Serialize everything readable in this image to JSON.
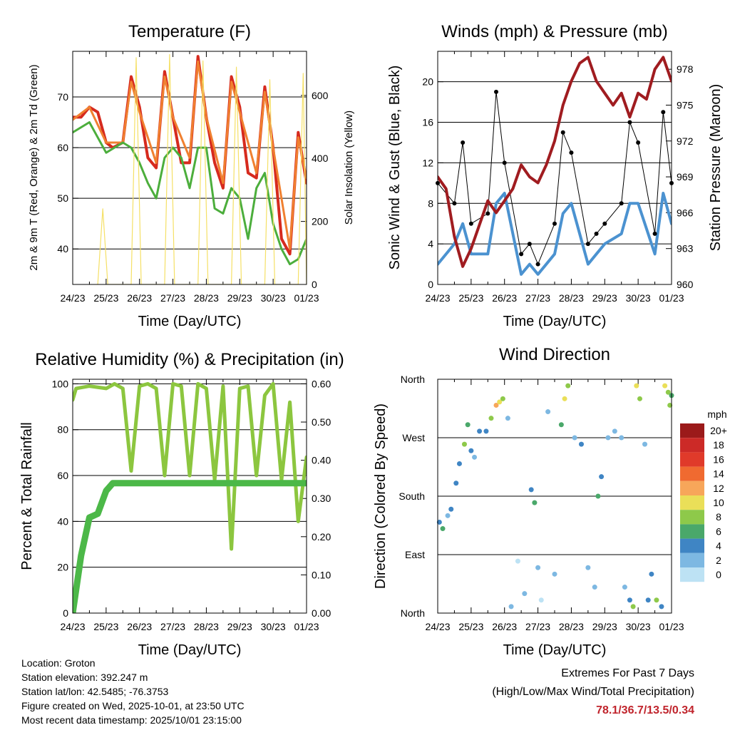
{
  "colors": {
    "red": "#d62a1e",
    "orange": "#f08030",
    "green": "#4cae3c",
    "yellow": "#f5e066",
    "blue": "#4b92d0",
    "black": "#000000",
    "maroon": "#a01c20",
    "rh_green": "#8cc63f",
    "precip_green": "#4cb848",
    "extreme_red": "#c0242c"
  },
  "chart_data": [
    {
      "id": "temperature",
      "type": "line",
      "title": "Temperature (F)",
      "xlabel": "Time (Day/UTC)",
      "ylabel": "2m & 9m T (Red, Orange) & 2m Td (Green)",
      "y2label": "Solar Insolation (Yellow)",
      "x_ticks": [
        "24/23",
        "25/23",
        "26/23",
        "27/23",
        "28/23",
        "29/23",
        "30/23",
        "01/23"
      ],
      "ylim": [
        33,
        79
      ],
      "y_ticks": [
        40,
        50,
        60,
        70
      ],
      "y2lim": [
        0,
        740
      ],
      "y2_ticks": [
        0,
        200,
        400,
        600
      ],
      "grid": true,
      "series": [
        {
          "name": "2m T",
          "color": "red",
          "x": [
            0,
            0.25,
            0.5,
            0.75,
            1,
            1.2,
            1.5,
            1.75,
            2,
            2.25,
            2.5,
            2.75,
            3,
            3.25,
            3.5,
            3.75,
            4,
            4.25,
            4.5,
            4.75,
            5,
            5.25,
            5.5,
            5.75,
            6,
            6.25,
            6.5,
            6.75,
            7
          ],
          "values": [
            66,
            66,
            68,
            67,
            61,
            60,
            61,
            74,
            68,
            58,
            56,
            75,
            66,
            57,
            57,
            78,
            66,
            57,
            52,
            74,
            68,
            55,
            54,
            72,
            60,
            42,
            39,
            63,
            53
          ]
        },
        {
          "name": "9m T",
          "color": "orange",
          "x": [
            0,
            0.5,
            1,
            1.5,
            1.75,
            2,
            2.5,
            2.75,
            3,
            3.5,
            3.75,
            4,
            4.5,
            4.75,
            5,
            5.5,
            5.75,
            6,
            6.5,
            6.75,
            7
          ],
          "values": [
            65.5,
            68,
            61,
            61,
            73,
            67,
            57,
            74,
            66,
            58,
            77,
            66,
            53,
            73,
            67,
            55,
            71,
            60,
            40,
            62,
            54
          ]
        },
        {
          "name": "2m Td",
          "color": "green",
          "x": [
            0,
            0.5,
            1,
            1.5,
            1.75,
            2,
            2.25,
            2.5,
            2.75,
            3,
            3.25,
            3.5,
            3.75,
            4,
            4.25,
            4.5,
            4.75,
            5,
            5.25,
            5.5,
            5.75,
            6,
            6.25,
            6.5,
            6.75,
            7
          ],
          "values": [
            63,
            65,
            59,
            61,
            60,
            57,
            53,
            50,
            58,
            60,
            58,
            52,
            60,
            60,
            48,
            47,
            52,
            50,
            42,
            52,
            55,
            45,
            40,
            37,
            38,
            42
          ]
        },
        {
          "name": "Solar Insolation",
          "color": "yellow",
          "axis": "y2",
          "x": [
            0.75,
            0.9,
            1.05,
            1.75,
            1.9,
            2.05,
            2.75,
            2.9,
            3.05,
            3.75,
            3.9,
            4.05,
            4.75,
            4.9,
            5.05,
            5.75,
            5.9,
            6.05,
            6.75,
            6.9,
            7.0
          ],
          "values": [
            0,
            240,
            0,
            0,
            720,
            0,
            0,
            730,
            0,
            0,
            710,
            0,
            0,
            690,
            0,
            0,
            650,
            0,
            0,
            670,
            0
          ]
        }
      ]
    },
    {
      "id": "winds",
      "type": "line",
      "title": "Winds (mph) & Pressure (mb)",
      "xlabel": "Time (Day/UTC)",
      "ylabel": "Sonic Wind & Gust (Blue, Black)",
      "y2label": "Station Pressure (Maroon)",
      "x_ticks": [
        "24/23",
        "25/23",
        "26/23",
        "27/23",
        "28/23",
        "29/23",
        "30/23",
        "01/23"
      ],
      "ylim": [
        0,
        23
      ],
      "y_ticks": [
        0,
        4,
        8,
        12,
        16,
        20
      ],
      "y2lim": [
        960,
        979.5
      ],
      "y2_ticks": [
        960,
        963,
        966,
        969,
        972,
        975,
        978
      ],
      "grid": true,
      "series": [
        {
          "name": "Sonic Wind",
          "color": "blue",
          "x": [
            0,
            0.5,
            0.75,
            1,
            1.5,
            1.75,
            2,
            2.5,
            2.75,
            3,
            3.5,
            3.75,
            4,
            4.5,
            4.75,
            5,
            5.5,
            5.75,
            6,
            6.5,
            6.75,
            7
          ],
          "values": [
            2,
            4,
            6,
            3,
            3,
            8,
            9,
            1,
            2,
            1,
            3,
            7,
            8,
            2,
            3,
            4,
            5,
            8,
            8,
            3,
            9,
            6
          ]
        },
        {
          "name": "Gust",
          "color": "black",
          "x": [
            0,
            0.5,
            0.75,
            1,
            1.5,
            1.75,
            2,
            2.5,
            2.75,
            3,
            3.5,
            3.75,
            4,
            4.5,
            4.75,
            5,
            5.5,
            5.75,
            6,
            6.5,
            6.75,
            7
          ],
          "values": [
            10,
            8,
            14,
            6,
            7,
            19,
            12,
            3,
            4,
            2,
            6,
            15,
            13,
            4,
            5,
            6,
            8,
            16,
            14,
            5,
            17,
            10
          ]
        },
        {
          "name": "Station Pressure",
          "color": "maroon",
          "axis": "y2",
          "x": [
            0,
            0.25,
            0.5,
            0.75,
            1,
            1.25,
            1.5,
            1.75,
            2,
            2.25,
            2.5,
            2.75,
            3,
            3.25,
            3.5,
            3.75,
            4,
            4.25,
            4.5,
            4.75,
            5,
            5.25,
            5.5,
            5.75,
            6,
            6.25,
            6.5,
            6.75,
            7
          ],
          "values": [
            969,
            968,
            964,
            961.5,
            963,
            965,
            967,
            966,
            967,
            968,
            970,
            969,
            968.5,
            970,
            972,
            975,
            977,
            978.5,
            979,
            977,
            976,
            975,
            976,
            974,
            976,
            975.5,
            978,
            979,
            977
          ]
        }
      ]
    },
    {
      "id": "humidity",
      "type": "line",
      "title": "Relative Humidity (%) & Precipitation (in)",
      "xlabel": "Time (Day/UTC)",
      "ylabel": "Percent & Total Rainfall",
      "x_ticks": [
        "24/23",
        "25/23",
        "26/23",
        "27/23",
        "28/23",
        "29/23",
        "30/23",
        "01/23"
      ],
      "ylim": [
        0,
        102
      ],
      "y_ticks": [
        0,
        20,
        40,
        60,
        80,
        100
      ],
      "y2lim": [
        0,
        0.612
      ],
      "y2_ticks": [
        "0.00",
        "0.10",
        "0.20",
        "0.30",
        "0.40",
        "0.50",
        "0.60"
      ],
      "grid": true,
      "series": [
        {
          "name": "Relative Humidity",
          "color": "rh_green",
          "x": [
            0,
            0.1,
            0.5,
            1,
            1.25,
            1.5,
            1.75,
            2,
            2.25,
            2.5,
            2.75,
            3,
            3.25,
            3.5,
            3.75,
            4,
            4.25,
            4.5,
            4.75,
            5,
            5.25,
            5.5,
            5.75,
            6,
            6.25,
            6.5,
            6.75,
            7
          ],
          "values": [
            93,
            98,
            99,
            98,
            100,
            98,
            62,
            99,
            100,
            98,
            60,
            100,
            99,
            60,
            100,
            98,
            58,
            99,
            28,
            98,
            99,
            60,
            95,
            100,
            58,
            92,
            40,
            68
          ]
        },
        {
          "name": "Total Rainfall",
          "color": "precip_green",
          "axis": "y2",
          "x": [
            0,
            0.25,
            0.5,
            0.75,
            1,
            1.2,
            2,
            3,
            4,
            5,
            6,
            7
          ],
          "values": [
            0,
            0.15,
            0.25,
            0.26,
            0.32,
            0.34,
            0.34,
            0.34,
            0.34,
            0.34,
            0.34,
            0.34
          ]
        }
      ]
    },
    {
      "id": "wind_direction",
      "type": "scatter",
      "title": "Wind Direction",
      "xlabel": "Time (Day/UTC)",
      "ylabel": "Direction (Colored By Speed)",
      "x_ticks": [
        "24/23",
        "25/23",
        "26/23",
        "27/23",
        "28/23",
        "29/23",
        "30/23",
        "01/23"
      ],
      "y_ticks": [
        "North",
        "East",
        "South",
        "West",
        "North"
      ],
      "ylim": [
        0,
        360
      ],
      "legend_title": "mph",
      "legend": [
        {
          "label": "20+",
          "color": "#9b1a1a"
        },
        {
          "label": "18",
          "color": "#cc2a27"
        },
        {
          "label": "16",
          "color": "#e03a2a"
        },
        {
          "label": "14",
          "color": "#f06a30"
        },
        {
          "label": "12",
          "color": "#f7a65a"
        },
        {
          "label": "10",
          "color": "#eadf58"
        },
        {
          "label": "8",
          "color": "#8ec94a"
        },
        {
          "label": "6",
          "color": "#4aa86a"
        },
        {
          "label": "4",
          "color": "#3f85c4"
        },
        {
          "label": "2",
          "color": "#7db8e2"
        },
        {
          "label": "0",
          "color": "#bde2f4"
        }
      ],
      "points": [
        {
          "x": 0.05,
          "dir": 140,
          "spd": 4
        },
        {
          "x": 0.15,
          "dir": 130,
          "spd": 6
        },
        {
          "x": 0.3,
          "dir": 150,
          "spd": 3
        },
        {
          "x": 0.4,
          "dir": 160,
          "spd": 4
        },
        {
          "x": 0.55,
          "dir": 200,
          "spd": 4
        },
        {
          "x": 0.65,
          "dir": 230,
          "spd": 5
        },
        {
          "x": 0.8,
          "dir": 260,
          "spd": 8
        },
        {
          "x": 0.9,
          "dir": 290,
          "spd": 7
        },
        {
          "x": 1.0,
          "dir": 250,
          "spd": 4
        },
        {
          "x": 1.1,
          "dir": 240,
          "spd": 3
        },
        {
          "x": 1.25,
          "dir": 280,
          "spd": 5
        },
        {
          "x": 1.45,
          "dir": 280,
          "spd": 4
        },
        {
          "x": 1.6,
          "dir": 300,
          "spd": 9
        },
        {
          "x": 1.75,
          "dir": 320,
          "spd": 12
        },
        {
          "x": 1.85,
          "dir": 325,
          "spd": 10
        },
        {
          "x": 1.95,
          "dir": 330,
          "spd": 8
        },
        {
          "x": 2.1,
          "dir": 300,
          "spd": 2
        },
        {
          "x": 2.2,
          "dir": 10,
          "spd": 2
        },
        {
          "x": 2.4,
          "dir": 80,
          "spd": 1
        },
        {
          "x": 2.6,
          "dir": 30,
          "spd": 2
        },
        {
          "x": 2.8,
          "dir": 190,
          "spd": 5
        },
        {
          "x": 2.9,
          "dir": 170,
          "spd": 7
        },
        {
          "x": 3.0,
          "dir": 70,
          "spd": 2
        },
        {
          "x": 3.1,
          "dir": 20,
          "spd": 1
        },
        {
          "x": 3.3,
          "dir": 310,
          "spd": 3
        },
        {
          "x": 3.5,
          "dir": 60,
          "spd": 2
        },
        {
          "x": 3.7,
          "dir": 290,
          "spd": 6
        },
        {
          "x": 3.8,
          "dir": 330,
          "spd": 10
        },
        {
          "x": 3.9,
          "dir": 350,
          "spd": 9
        },
        {
          "x": 4.1,
          "dir": 270,
          "spd": 3
        },
        {
          "x": 4.3,
          "dir": 260,
          "spd": 4
        },
        {
          "x": 4.5,
          "dir": 70,
          "spd": 2
        },
        {
          "x": 4.7,
          "dir": 40,
          "spd": 3
        },
        {
          "x": 4.8,
          "dir": 180,
          "spd": 6
        },
        {
          "x": 4.9,
          "dir": 210,
          "spd": 5
        },
        {
          "x": 5.1,
          "dir": 270,
          "spd": 3
        },
        {
          "x": 5.3,
          "dir": 280,
          "spd": 3
        },
        {
          "x": 5.5,
          "dir": 270,
          "spd": 3
        },
        {
          "x": 5.6,
          "dir": 40,
          "spd": 2
        },
        {
          "x": 5.75,
          "dir": 20,
          "spd": 4
        },
        {
          "x": 5.85,
          "dir": 10,
          "spd": 9
        },
        {
          "x": 5.95,
          "dir": 350,
          "spd": 10
        },
        {
          "x": 6.05,
          "dir": 330,
          "spd": 8
        },
        {
          "x": 6.2,
          "dir": 260,
          "spd": 3
        },
        {
          "x": 6.3,
          "dir": 20,
          "spd": 5
        },
        {
          "x": 6.4,
          "dir": 60,
          "spd": 4
        },
        {
          "x": 6.55,
          "dir": 20,
          "spd": 8
        },
        {
          "x": 6.7,
          "dir": 10,
          "spd": 4
        },
        {
          "x": 6.8,
          "dir": 350,
          "spd": 10
        },
        {
          "x": 6.9,
          "dir": 340,
          "spd": 9
        },
        {
          "x": 6.95,
          "dir": 320,
          "spd": 8
        },
        {
          "x": 7.0,
          "dir": 335,
          "spd": 7
        }
      ]
    }
  ],
  "info": {
    "location": "Location: Groton",
    "elevation": "Station elevation: 392.247 m",
    "latlon": "Station lat/lon: 42.5485; -76.3753",
    "created": "Figure created on Wed, 2025-10-01, at 23:50 UTC",
    "recent": "Most recent data timestamp: 2025/10/01 23:15:00"
  },
  "extremes": {
    "line1": "Extremes For Past 7 Days",
    "line2": "(High/Low/Max Wind/Total Precipitation)",
    "value": "78.1/36.7/13.5/0.34"
  }
}
